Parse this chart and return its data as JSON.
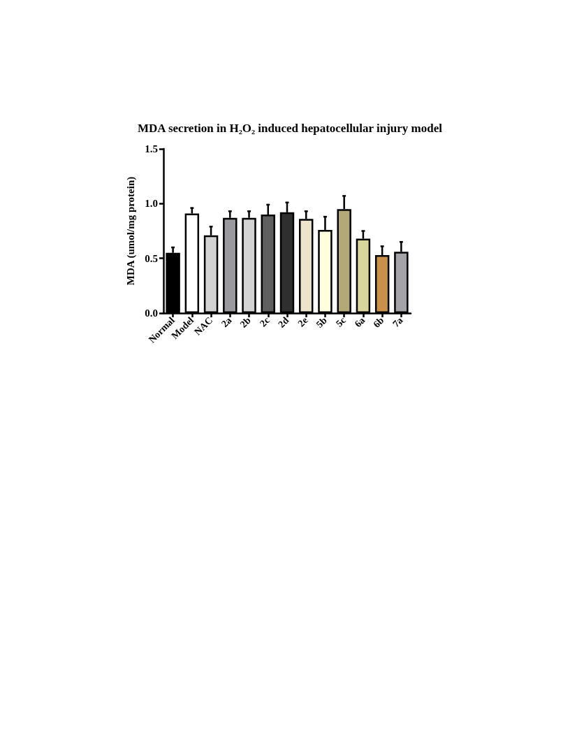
{
  "chart_data": {
    "type": "bar",
    "title": "MDA secretion in H₂O₂ induced hepatocellular injury model",
    "ylabel": "MDA (umol/mg protein)",
    "categories": [
      "Normal",
      "Model",
      "NAC",
      "2a",
      "2b",
      "2c",
      "2d",
      "2e",
      "5b",
      "5c",
      "6a",
      "6b",
      "7a"
    ],
    "values": [
      0.55,
      0.91,
      0.71,
      0.87,
      0.87,
      0.9,
      0.92,
      0.86,
      0.76,
      0.95,
      0.68,
      0.53,
      0.56
    ],
    "errors": [
      [
        0.55,
        0.6
      ],
      [
        0.91,
        0.96
      ],
      [
        0.71,
        0.79
      ],
      [
        0.87,
        0.93
      ],
      [
        0.87,
        0.93
      ],
      [
        0.9,
        0.99
      ],
      [
        0.92,
        1.01
      ],
      [
        0.86,
        0.93
      ],
      [
        0.76,
        0.88
      ],
      [
        0.95,
        1.07
      ],
      [
        0.68,
        0.75
      ],
      [
        0.53,
        0.61
      ],
      [
        0.56,
        0.65
      ]
    ],
    "colors": [
      "#000000",
      "#ffffff",
      "#d3d3d3",
      "#9a999e",
      "#d3d3d3",
      "#5f5f5f",
      "#2f2f2f",
      "#ece5cc",
      "#ffffe0",
      "#b3a878",
      "#d8d69c",
      "#c8904a",
      "#a3a3a8"
    ],
    "ylim": [
      0,
      1.5
    ],
    "yticks": [
      {
        "value": 0,
        "label": "0.0"
      },
      {
        "value": 0.5,
        "label": "0.5"
      },
      {
        "value": 1,
        "label": "1.0"
      },
      {
        "value": 1.5,
        "label": "1.5"
      }
    ],
    "grid": false
  }
}
